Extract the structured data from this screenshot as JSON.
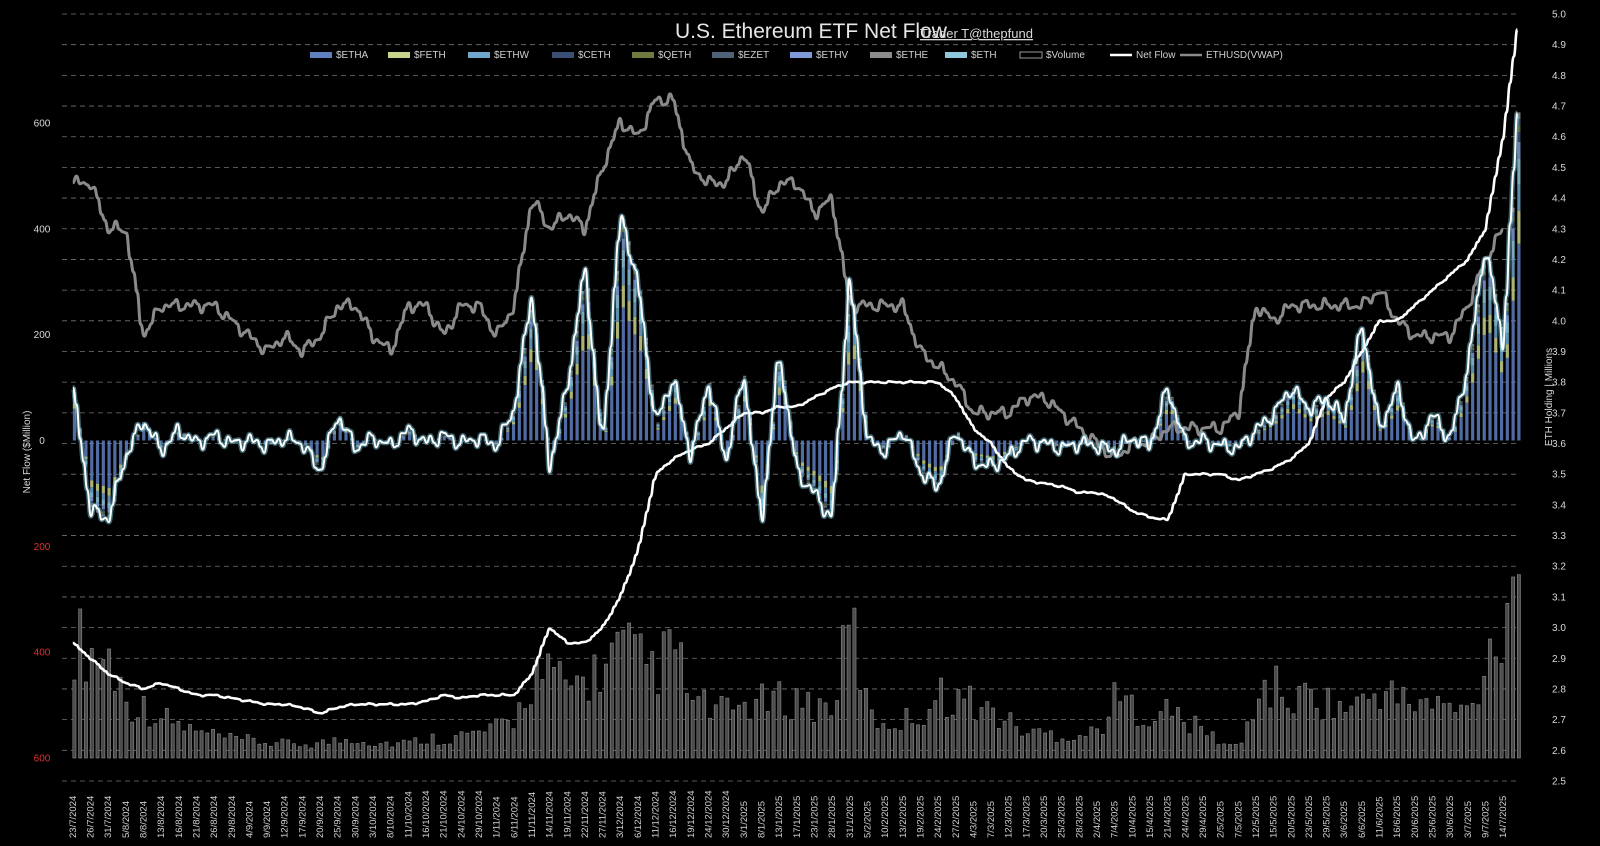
{
  "chart_data": {
    "type": "bar",
    "title": "U.S. Ethereum ETF Net Flow",
    "credit": "Trader T@thepfund",
    "ylabel_left": "Net Flow ($Million)",
    "ylabel_right": "ETH Holding | Millions",
    "left_ticks": [
      {
        "label": "600",
        "value": 600,
        "negative": false
      },
      {
        "label": "400",
        "value": 400,
        "negative": false
      },
      {
        "label": "200",
        "value": 200,
        "negative": false
      },
      {
        "label": "0",
        "value": 0,
        "negative": false
      },
      {
        "label": "200",
        "value": -200,
        "negative": true
      },
      {
        "label": "400",
        "value": -400,
        "negative": true
      },
      {
        "label": "600",
        "value": -600,
        "negative": true
      }
    ],
    "ylim_left": [
      -600,
      600
    ],
    "right_ticks": [
      "5.0",
      "4.9",
      "4.8",
      "4.7",
      "4.6",
      "4.5",
      "4.4",
      "4.3",
      "4.2",
      "4.1",
      "4.0",
      "3.9",
      "3.8",
      "3.7",
      "3.6",
      "3.5",
      "3.4",
      "3.3",
      "3.2",
      "3.1",
      "3.0",
      "2.9",
      "2.8",
      "2.7",
      "2.6",
      "2.5"
    ],
    "ylim_right": [
      2.5,
      5.0
    ],
    "legend": [
      {
        "label": "$ETHA",
        "color": "#5f7fbf",
        "kind": "bar"
      },
      {
        "label": "$FETH",
        "color": "#c9d48a",
        "kind": "bar"
      },
      {
        "label": "$ETHW",
        "color": "#6fa6cc",
        "kind": "bar"
      },
      {
        "label": "$CETH",
        "color": "#3a4f73",
        "kind": "bar"
      },
      {
        "label": "$QETH",
        "color": "#6f7a3e",
        "kind": "bar"
      },
      {
        "label": "$EZET",
        "color": "#4d6276",
        "kind": "bar"
      },
      {
        "label": "$ETHV",
        "color": "#7f9ad8",
        "kind": "bar"
      },
      {
        "label": "$ETHE",
        "color": "#8c8c8c",
        "kind": "bar"
      },
      {
        "label": "$ETH",
        "color": "#8fc8dc",
        "kind": "bar"
      },
      {
        "label": "$Volume",
        "color": "#9a9a9a",
        "kind": "outline"
      },
      {
        "label": "Net Flow",
        "color": "#ffffff",
        "kind": "line"
      },
      {
        "label": "ETHUSD(VWAP)",
        "color": "#8a8a8a",
        "kind": "line"
      }
    ],
    "x_labels": [
      "23/7/2024",
      "26/7/2024",
      "31/7/2024",
      "5/8/2024",
      "8/8/2024",
      "13/8/2024",
      "16/8/2024",
      "21/8/2024",
      "26/8/2024",
      "29/8/2024",
      "4/9/2024",
      "9/9/2024",
      "12/9/2024",
      "17/9/2024",
      "20/9/2024",
      "25/9/2024",
      "30/9/2024",
      "3/10/2024",
      "8/10/2024",
      "11/10/2024",
      "16/10/2024",
      "21/10/2024",
      "24/10/2024",
      "29/10/2024",
      "1/11/2024",
      "6/11/2024",
      "11/11/2024",
      "14/11/2024",
      "19/11/2024",
      "22/11/2024",
      "27/11/2024",
      "3/12/2024",
      "6/12/2024",
      "11/12/2024",
      "16/12/2024",
      "19/12/2024",
      "24/12/2024",
      "30/12/2024",
      "3/1/2025",
      "8/1/2025",
      "13/1/2025",
      "17/1/2025",
      "23/1/2025",
      "28/1/2025",
      "31/1/2025",
      "5/2/2025",
      "10/2/2025",
      "13/2/2025",
      "19/2/2025",
      "24/2/2025",
      "27/2/2025",
      "4/3/2025",
      "7/3/2025",
      "12/3/2025",
      "17/3/2025",
      "20/3/2025",
      "25/3/2025",
      "28/3/2025",
      "2/4/2025",
      "7/4/2025",
      "10/4/2025",
      "15/4/2025",
      "21/4/2025",
      "24/4/2025",
      "29/4/2025",
      "2/5/2025",
      "7/5/2025",
      "12/5/2025",
      "15/5/2025",
      "20/5/2025",
      "23/5/2025",
      "29/5/2025",
      "3/6/2025",
      "6/6/2025",
      "11/6/2025",
      "16/6/2025",
      "20/6/2025",
      "25/6/2025",
      "30/6/2025",
      "3/7/2025",
      "9/7/2025",
      "14/7/2025"
    ],
    "net_flow_keypoints": [
      [
        0,
        100
      ],
      [
        1,
        -130
      ],
      [
        2,
        -150
      ],
      [
        3,
        -30
      ],
      [
        4,
        40
      ],
      [
        5,
        -20
      ],
      [
        6,
        20
      ],
      [
        7,
        -5
      ],
      [
        8,
        10
      ],
      [
        9,
        -5
      ],
      [
        10,
        0
      ],
      [
        11,
        -10
      ],
      [
        12,
        5
      ],
      [
        13,
        -5
      ],
      [
        14,
        -60
      ],
      [
        15,
        50
      ],
      [
        16,
        -15
      ],
      [
        17,
        5
      ],
      [
        18,
        -10
      ],
      [
        19,
        20
      ],
      [
        20,
        -5
      ],
      [
        21,
        10
      ],
      [
        22,
        -5
      ],
      [
        23,
        5
      ],
      [
        24,
        -10
      ],
      [
        25,
        60
      ],
      [
        26,
        280
      ],
      [
        27,
        -50
      ],
      [
        28,
        100
      ],
      [
        29,
        330
      ],
      [
        30,
        -20
      ],
      [
        31,
        430
      ],
      [
        32,
        300
      ],
      [
        33,
        30
      ],
      [
        34,
        120
      ],
      [
        35,
        -30
      ],
      [
        36,
        110
      ],
      [
        37,
        -40
      ],
      [
        38,
        130
      ],
      [
        39,
        -160
      ],
      [
        40,
        170
      ],
      [
        41,
        -60
      ],
      [
        42,
        -100
      ],
      [
        43,
        -150
      ],
      [
        44,
        310
      ],
      [
        45,
        0
      ],
      [
        46,
        -20
      ],
      [
        47,
        20
      ],
      [
        48,
        -60
      ],
      [
        49,
        -90
      ],
      [
        50,
        20
      ],
      [
        51,
        -40
      ],
      [
        52,
        -50
      ],
      [
        53,
        -30
      ],
      [
        54,
        0
      ],
      [
        55,
        -5
      ],
      [
        56,
        -15
      ],
      [
        57,
        -5
      ],
      [
        58,
        -10
      ],
      [
        59,
        -20
      ],
      [
        60,
        5
      ],
      [
        61,
        -10
      ],
      [
        62,
        100
      ],
      [
        63,
        -5
      ],
      [
        64,
        0
      ],
      [
        65,
        -10
      ],
      [
        66,
        -15
      ],
      [
        67,
        20
      ],
      [
        68,
        50
      ],
      [
        69,
        100
      ],
      [
        70,
        60
      ],
      [
        71,
        80
      ],
      [
        72,
        40
      ],
      [
        73,
        220
      ],
      [
        74,
        20
      ],
      [
        75,
        100
      ],
      [
        76,
        -10
      ],
      [
        77,
        50
      ],
      [
        78,
        0
      ],
      [
        79,
        140
      ],
      [
        80,
        370
      ],
      [
        81,
        180
      ],
      [
        81.8,
        620
      ]
    ],
    "vwap_keypoints": [
      [
        0,
        4.45
      ],
      [
        1,
        4.45
      ],
      [
        2,
        4.3
      ],
      [
        3,
        4.3
      ],
      [
        4,
        3.95
      ],
      [
        5,
        4.05
      ],
      [
        6,
        4.05
      ],
      [
        7,
        4.05
      ],
      [
        8,
        4.05
      ],
      [
        9,
        4.0
      ],
      [
        10,
        3.95
      ],
      [
        11,
        3.9
      ],
      [
        12,
        3.95
      ],
      [
        13,
        3.9
      ],
      [
        14,
        3.95
      ],
      [
        15,
        4.05
      ],
      [
        16,
        4.05
      ],
      [
        17,
        3.95
      ],
      [
        18,
        3.9
      ],
      [
        19,
        4.05
      ],
      [
        20,
        4.05
      ],
      [
        21,
        3.95
      ],
      [
        22,
        4.05
      ],
      [
        23,
        4.05
      ],
      [
        24,
        3.95
      ],
      [
        25,
        4.05
      ],
      [
        26,
        4.4
      ],
      [
        27,
        4.3
      ],
      [
        28,
        4.35
      ],
      [
        29,
        4.3
      ],
      [
        30,
        4.5
      ],
      [
        31,
        4.65
      ],
      [
        32,
        4.6
      ],
      [
        33,
        4.72
      ],
      [
        34,
        4.72
      ],
      [
        35,
        4.5
      ],
      [
        36,
        4.45
      ],
      [
        37,
        4.45
      ],
      [
        38,
        4.55
      ],
      [
        39,
        4.35
      ],
      [
        40,
        4.45
      ],
      [
        41,
        4.45
      ],
      [
        42,
        4.35
      ],
      [
        43,
        4.4
      ],
      [
        44,
        4.05
      ],
      [
        45,
        4.05
      ],
      [
        46,
        4.05
      ],
      [
        47,
        4.05
      ],
      [
        48,
        3.9
      ],
      [
        49,
        3.85
      ],
      [
        50,
        3.8
      ],
      [
        51,
        3.7
      ],
      [
        52,
        3.7
      ],
      [
        53,
        3.7
      ],
      [
        54,
        3.75
      ],
      [
        55,
        3.75
      ],
      [
        56,
        3.7
      ],
      [
        57,
        3.65
      ],
      [
        58,
        3.6
      ],
      [
        59,
        3.55
      ],
      [
        60,
        3.6
      ],
      [
        61,
        3.6
      ],
      [
        62,
        3.65
      ],
      [
        63,
        3.65
      ],
      [
        64,
        3.65
      ],
      [
        65,
        3.65
      ],
      [
        66,
        3.7
      ],
      [
        67,
        4.05
      ],
      [
        68,
        4.0
      ],
      [
        69,
        4.05
      ],
      [
        70,
        4.05
      ],
      [
        71,
        4.05
      ],
      [
        72,
        4.05
      ],
      [
        73,
        4.05
      ],
      [
        74,
        4.1
      ],
      [
        75,
        4.0
      ],
      [
        76,
        3.95
      ],
      [
        77,
        3.95
      ],
      [
        78,
        3.95
      ],
      [
        79,
        4.05
      ],
      [
        80,
        4.2
      ],
      [
        81,
        4.3
      ]
    ],
    "holding_keypoints": [
      [
        0,
        2.95
      ],
      [
        1,
        2.9
      ],
      [
        2,
        2.85
      ],
      [
        3,
        2.82
      ],
      [
        4,
        2.8
      ],
      [
        5,
        2.82
      ],
      [
        6,
        2.8
      ],
      [
        7,
        2.78
      ],
      [
        8,
        2.78
      ],
      [
        9,
        2.77
      ],
      [
        10,
        2.76
      ],
      [
        11,
        2.75
      ],
      [
        12,
        2.75
      ],
      [
        13,
        2.74
      ],
      [
        14,
        2.72
      ],
      [
        15,
        2.74
      ],
      [
        16,
        2.75
      ],
      [
        17,
        2.75
      ],
      [
        18,
        2.75
      ],
      [
        19,
        2.75
      ],
      [
        20,
        2.76
      ],
      [
        21,
        2.78
      ],
      [
        22,
        2.77
      ],
      [
        23,
        2.78
      ],
      [
        24,
        2.78
      ],
      [
        25,
        2.78
      ],
      [
        26,
        2.85
      ],
      [
        27,
        3.0
      ],
      [
        28,
        2.95
      ],
      [
        29,
        2.95
      ],
      [
        30,
        3.0
      ],
      [
        31,
        3.1
      ],
      [
        32,
        3.25
      ],
      [
        33,
        3.5
      ],
      [
        34,
        3.55
      ],
      [
        35,
        3.58
      ],
      [
        36,
        3.6
      ],
      [
        37,
        3.65
      ],
      [
        38,
        3.7
      ],
      [
        39,
        3.7
      ],
      [
        40,
        3.72
      ],
      [
        41,
        3.72
      ],
      [
        42,
        3.75
      ],
      [
        43,
        3.78
      ],
      [
        44,
        3.8
      ],
      [
        45,
        3.8
      ],
      [
        46,
        3.8
      ],
      [
        47,
        3.8
      ],
      [
        48,
        3.8
      ],
      [
        49,
        3.8
      ],
      [
        50,
        3.75
      ],
      [
        51,
        3.65
      ],
      [
        52,
        3.6
      ],
      [
        53,
        3.52
      ],
      [
        54,
        3.48
      ],
      [
        55,
        3.47
      ],
      [
        56,
        3.46
      ],
      [
        57,
        3.44
      ],
      [
        58,
        3.44
      ],
      [
        59,
        3.42
      ],
      [
        60,
        3.38
      ],
      [
        61,
        3.36
      ],
      [
        62,
        3.35
      ],
      [
        63,
        3.5
      ],
      [
        64,
        3.5
      ],
      [
        65,
        3.5
      ],
      [
        66,
        3.48
      ],
      [
        67,
        3.5
      ],
      [
        68,
        3.52
      ],
      [
        69,
        3.55
      ],
      [
        70,
        3.6
      ],
      [
        71,
        3.75
      ],
      [
        72,
        3.8
      ],
      [
        73,
        3.9
      ],
      [
        74,
        4.0
      ],
      [
        75,
        4.0
      ],
      [
        76,
        4.05
      ],
      [
        77,
        4.1
      ],
      [
        78,
        4.15
      ],
      [
        79,
        4.2
      ],
      [
        80,
        4.3
      ],
      [
        81,
        4.6
      ],
      [
        81.8,
        4.95
      ]
    ],
    "volume_keypoints": [
      [
        0,
        240
      ],
      [
        1,
        210
      ],
      [
        2,
        200
      ],
      [
        3,
        110
      ],
      [
        4,
        100
      ],
      [
        5,
        80
      ],
      [
        6,
        65
      ],
      [
        7,
        50
      ],
      [
        8,
        45
      ],
      [
        9,
        35
      ],
      [
        10,
        35
      ],
      [
        11,
        30
      ],
      [
        12,
        28
      ],
      [
        13,
        28
      ],
      [
        14,
        30
      ],
      [
        15,
        35
      ],
      [
        16,
        40
      ],
      [
        17,
        30
      ],
      [
        18,
        30
      ],
      [
        19,
        30
      ],
      [
        20,
        40
      ],
      [
        21,
        38
      ],
      [
        22,
        45
      ],
      [
        23,
        50
      ],
      [
        24,
        60
      ],
      [
        25,
        80
      ],
      [
        26,
        170
      ],
      [
        27,
        160
      ],
      [
        28,
        140
      ],
      [
        29,
        160
      ],
      [
        30,
        180
      ],
      [
        31,
        220
      ],
      [
        32,
        190
      ],
      [
        33,
        180
      ],
      [
        34,
        220
      ],
      [
        35,
        110
      ],
      [
        36,
        100
      ],
      [
        37,
        90
      ],
      [
        38,
        110
      ],
      [
        39,
        110
      ],
      [
        40,
        115
      ],
      [
        41,
        120
      ],
      [
        42,
        100
      ],
      [
        43,
        110
      ],
      [
        44,
        280
      ],
      [
        45,
        80
      ],
      [
        46,
        70
      ],
      [
        47,
        75
      ],
      [
        48,
        90
      ],
      [
        49,
        125
      ],
      [
        50,
        120
      ],
      [
        51,
        110
      ],
      [
        52,
        90
      ],
      [
        53,
        70
      ],
      [
        54,
        50
      ],
      [
        55,
        50
      ],
      [
        56,
        45
      ],
      [
        57,
        45
      ],
      [
        58,
        55
      ],
      [
        59,
        120
      ],
      [
        60,
        100
      ],
      [
        61,
        85
      ],
      [
        62,
        95
      ],
      [
        63,
        70
      ],
      [
        64,
        55
      ],
      [
        65,
        30
      ],
      [
        66,
        20
      ],
      [
        67,
        130
      ],
      [
        68,
        140
      ],
      [
        69,
        110
      ],
      [
        70,
        130
      ],
      [
        71,
        110
      ],
      [
        72,
        100
      ],
      [
        73,
        110
      ],
      [
        74,
        140
      ],
      [
        75,
        115
      ],
      [
        76,
        110
      ],
      [
        77,
        105
      ],
      [
        78,
        100
      ],
      [
        79,
        90
      ],
      [
        80,
        200
      ],
      [
        81,
        290
      ],
      [
        81.8,
        450
      ]
    ],
    "etf_weights": {
      "$ETHA": 0.6,
      "$FETH": 0.1,
      "$ETHW": 0.08,
      "$ETH": 0.08,
      "$ETHV": 0.05,
      "$CETH": 0.03,
      "$QETH": 0.02,
      "$EZET": 0.02,
      "$ETHE": 0.02
    },
    "grid": "dashed horizontal",
    "legend_position": "top"
  }
}
